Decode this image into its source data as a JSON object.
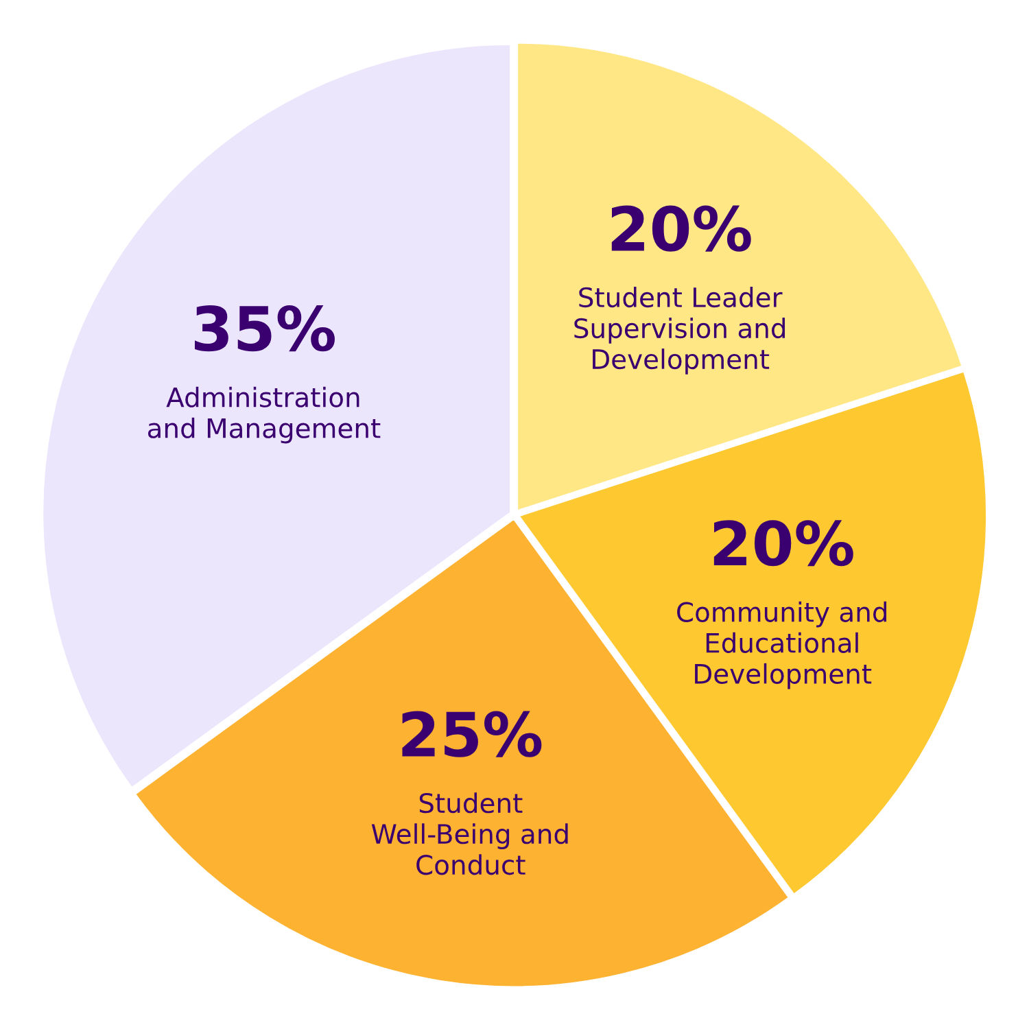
{
  "chart_data": {
    "type": "pie",
    "categories": [
      "Student Leader\nSupervision and\nDevelopment",
      "Community and\nEducational\nDevelopment",
      "Student\nWell-Being and\nConduct",
      "Administration\nand Management"
    ],
    "values": [
      20,
      20,
      25,
      35
    ],
    "value_labels": [
      "20%",
      "20%",
      "25%",
      "35%"
    ],
    "colors": [
      "#ffe786",
      "#fec830",
      "#fdb232",
      "#ece6fd"
    ],
    "legend": false
  }
}
